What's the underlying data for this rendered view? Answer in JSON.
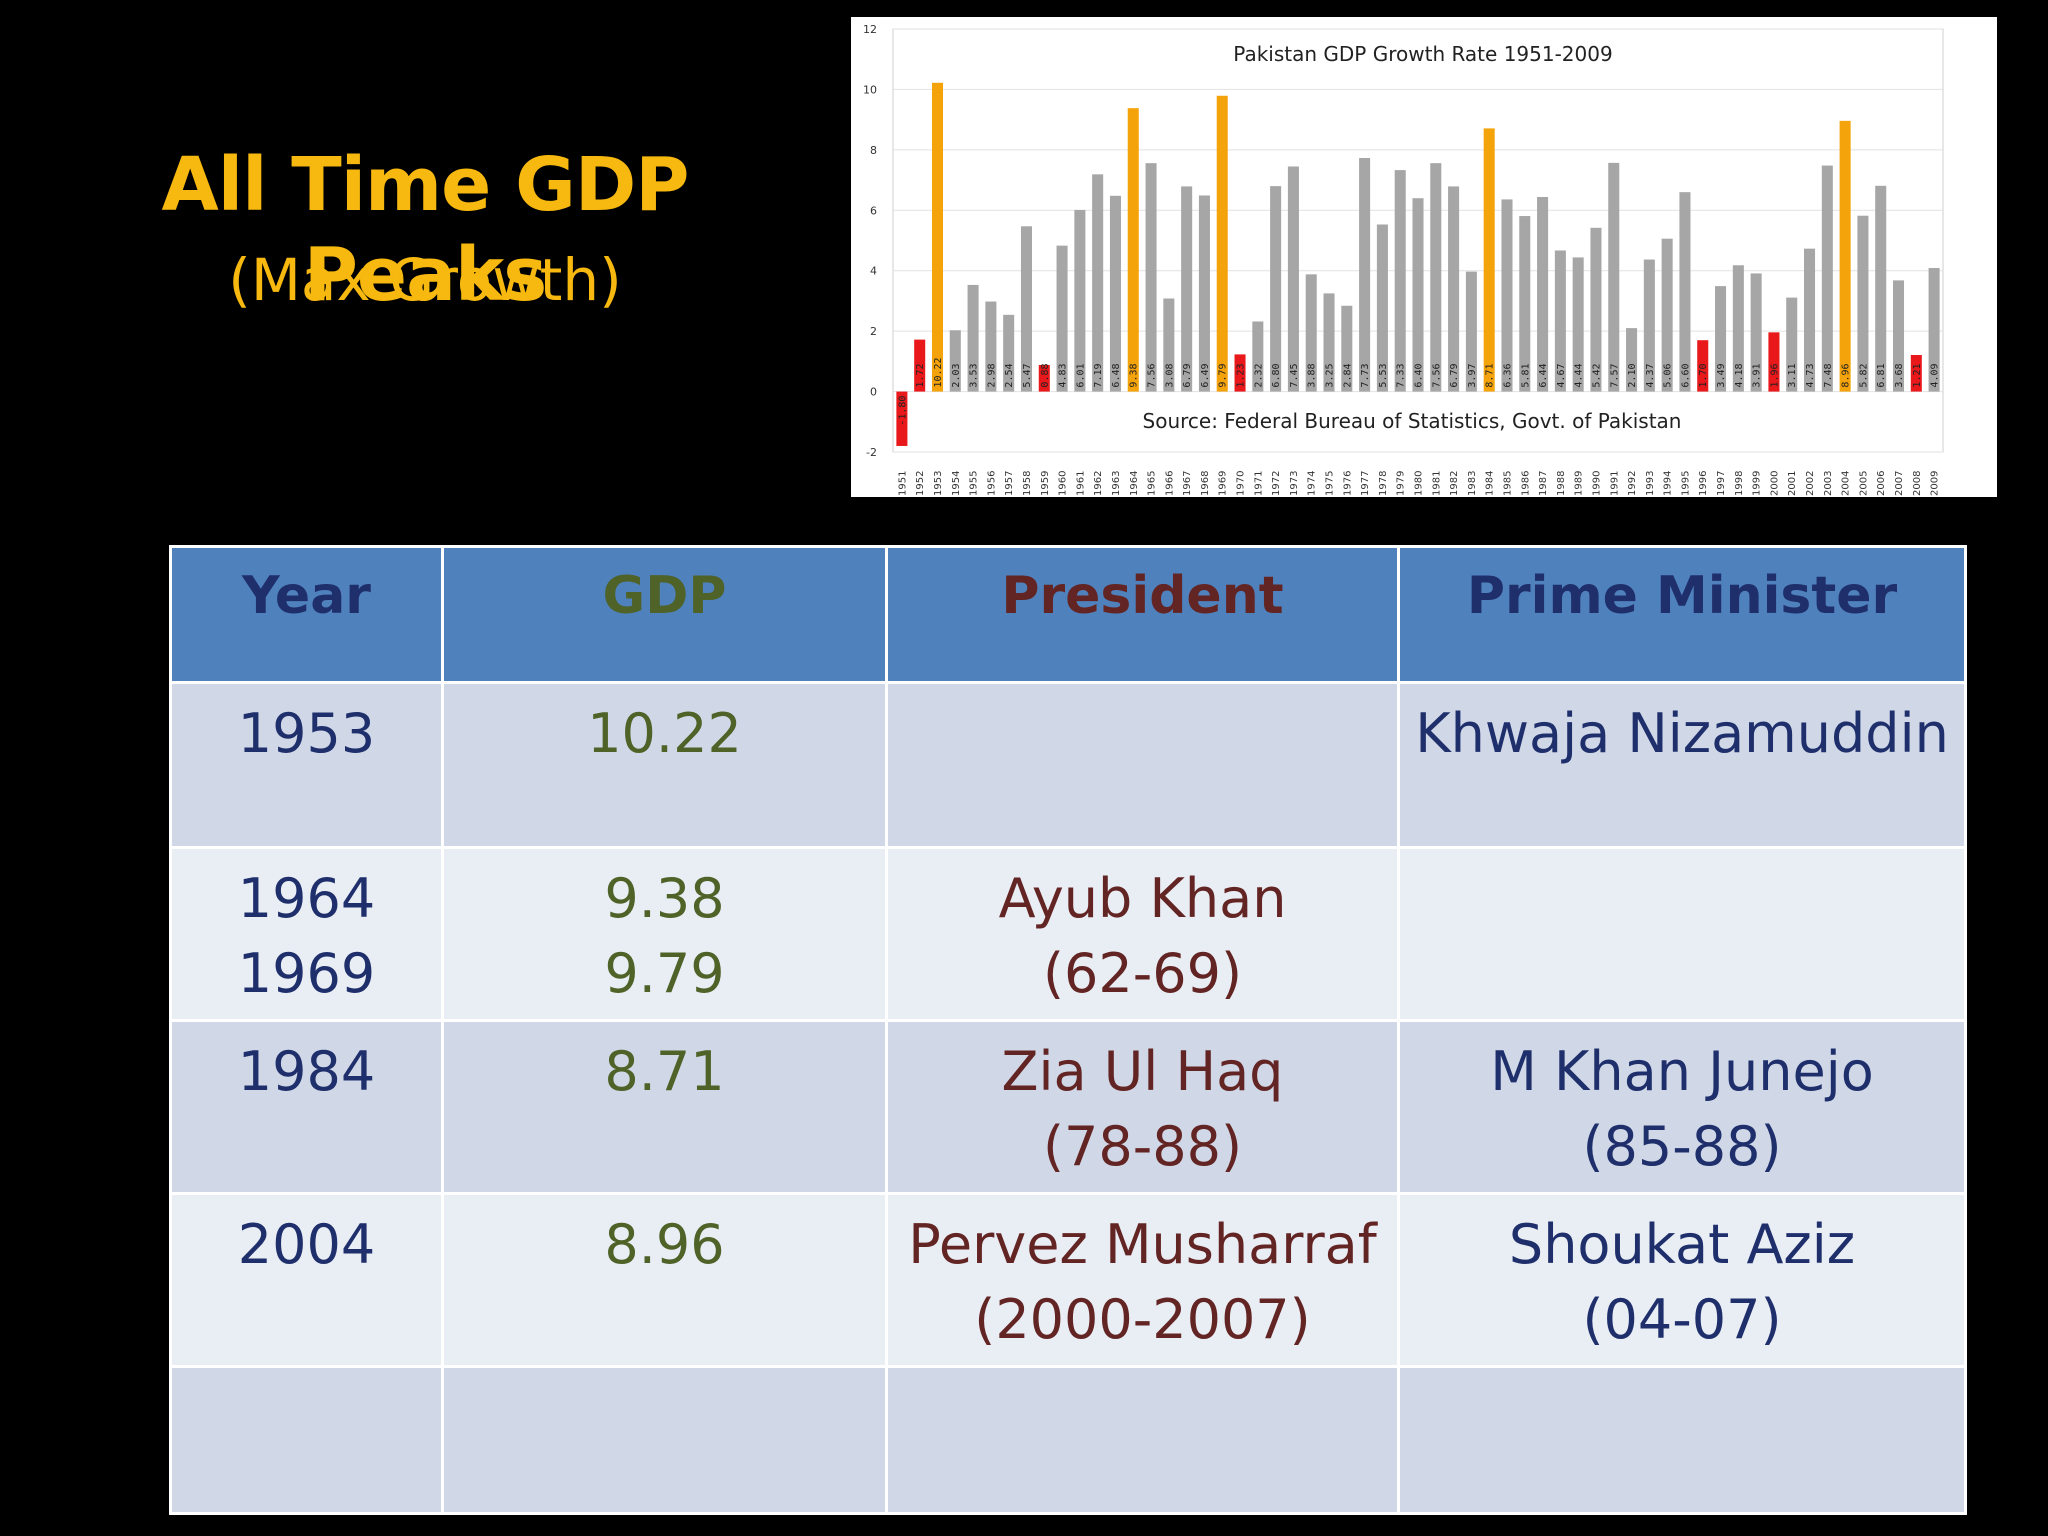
{
  "slide": {
    "title": "All Time GDP Peaks",
    "subtitle": "(Max Growth)",
    "title_color": "#f7b80f"
  },
  "table": {
    "headers": {
      "year": "Year",
      "gdp": "GDP",
      "president": "President",
      "prime_minister": "Prime Minister"
    },
    "header_colors": {
      "year": "#1f2f6b",
      "gdp": "#4f6228",
      "president": "#632523",
      "prime_minister": "#1f2f6b"
    },
    "rows": [
      {
        "year": [
          "1953"
        ],
        "gdp": [
          "10.22"
        ],
        "president": [],
        "prime_minister": [
          "Khwaja Nizamuddin"
        ]
      },
      {
        "year": [
          "1964",
          "1969"
        ],
        "gdp": [
          "9.38",
          "9.79"
        ],
        "president": [
          "Ayub Khan",
          "(62-69)"
        ],
        "prime_minister": []
      },
      {
        "year": [
          "1984"
        ],
        "gdp": [
          "8.71"
        ],
        "president": [
          "Zia Ul Haq",
          "(78-88)"
        ],
        "prime_minister": [
          "M Khan Junejo",
          "(85-88)"
        ]
      },
      {
        "year": [
          "2004"
        ],
        "gdp": [
          "8.96"
        ],
        "president": [
          "Pervez Musharraf",
          "(2000-2007)"
        ],
        "prime_minister": [
          "Shoukat Aziz",
          "(04-07)"
        ]
      },
      {
        "year": [],
        "gdp": [],
        "president": [],
        "prime_minister": []
      }
    ]
  },
  "chart_data": {
    "type": "bar",
    "title": "Pakistan GDP Growth Rate 1951-2009",
    "source": "Source: Federal Bureau of Statistics, Govt. of Pakistan",
    "xlabel": "",
    "ylabel": "",
    "ylim": [
      -2,
      12
    ],
    "yticks": [
      -2,
      0,
      2,
      4,
      6,
      8,
      10,
      12
    ],
    "grid": true,
    "colors": {
      "peak": "#f5a30a",
      "low": "#e8181b",
      "normal": "#a6a6a6"
    },
    "categories": [
      "1951",
      "1952",
      "1953",
      "1954",
      "1955",
      "1956",
      "1957",
      "1958",
      "1959",
      "1960",
      "1961",
      "1962",
      "1963",
      "1964",
      "1965",
      "1966",
      "1967",
      "1968",
      "1969",
      "1970",
      "1971",
      "1972",
      "1973",
      "1974",
      "1975",
      "1976",
      "1977",
      "1978",
      "1979",
      "1980",
      "1981",
      "1982",
      "1983",
      "1984",
      "1985",
      "1986",
      "1987",
      "1988",
      "1989",
      "1990",
      "1991",
      "1992",
      "1993",
      "1994",
      "1995",
      "1996",
      "1997",
      "1998",
      "1999",
      "2000",
      "2001",
      "2002",
      "2003",
      "2004",
      "2005",
      "2006",
      "2007",
      "2008",
      "2009"
    ],
    "values": [
      -1.8,
      1.72,
      10.22,
      2.03,
      3.53,
      2.98,
      2.54,
      5.47,
      0.88,
      4.83,
      6.01,
      7.19,
      6.48,
      9.38,
      7.56,
      3.08,
      6.79,
      6.49,
      9.79,
      1.23,
      2.32,
      6.8,
      7.45,
      3.88,
      3.25,
      2.84,
      7.73,
      5.53,
      7.33,
      6.4,
      7.56,
      6.79,
      3.97,
      8.71,
      6.36,
      5.81,
      6.44,
      4.67,
      4.44,
      5.42,
      7.57,
      2.1,
      4.37,
      5.06,
      6.6,
      1.7,
      3.49,
      4.18,
      3.91,
      1.96,
      3.11,
      4.73,
      7.48,
      8.96,
      5.82,
      6.81,
      3.68,
      1.21,
      4.09
    ],
    "labels": [
      "-1.80",
      "1.72",
      "10.22",
      "2.03",
      "3.53",
      "2.98",
      "2.54",
      "5.47",
      "0.88",
      "4.83",
      "6.01",
      "7.19",
      "6.48",
      "9.38",
      "7.56",
      "3.08",
      "6.79",
      "6.49",
      "9.79",
      "1.23",
      "2.32",
      "6.80",
      "7.45",
      "3.88",
      "3.25",
      "2.84",
      "7.73",
      "5.53",
      "7.33",
      "6.40",
      "7.56",
      "6.79",
      "3.97",
      "8.71",
      "6.36",
      "5.81",
      "6.44",
      "4.67",
      "4.44",
      "5.42",
      "7.57",
      "2.10",
      "4.37",
      "5.06",
      "6.60",
      "1.70",
      "3.49",
      "4.18",
      "3.91",
      "1.96",
      "3.11",
      "4.73",
      "7.48",
      "8.96",
      "5.82",
      "6.81",
      "3.68",
      "1.21",
      "4.09"
    ],
    "bar_class": [
      "low",
      "low",
      "peak",
      "normal",
      "normal",
      "normal",
      "normal",
      "normal",
      "low",
      "normal",
      "normal",
      "normal",
      "normal",
      "peak",
      "normal",
      "normal",
      "normal",
      "normal",
      "peak",
      "low",
      "normal",
      "normal",
      "normal",
      "normal",
      "normal",
      "normal",
      "normal",
      "normal",
      "normal",
      "normal",
      "normal",
      "normal",
      "normal",
      "peak",
      "normal",
      "normal",
      "normal",
      "normal",
      "normal",
      "normal",
      "normal",
      "normal",
      "normal",
      "normal",
      "normal",
      "low",
      "normal",
      "normal",
      "normal",
      "low",
      "normal",
      "normal",
      "normal",
      "peak",
      "normal",
      "normal",
      "normal",
      "low",
      "normal"
    ]
  }
}
